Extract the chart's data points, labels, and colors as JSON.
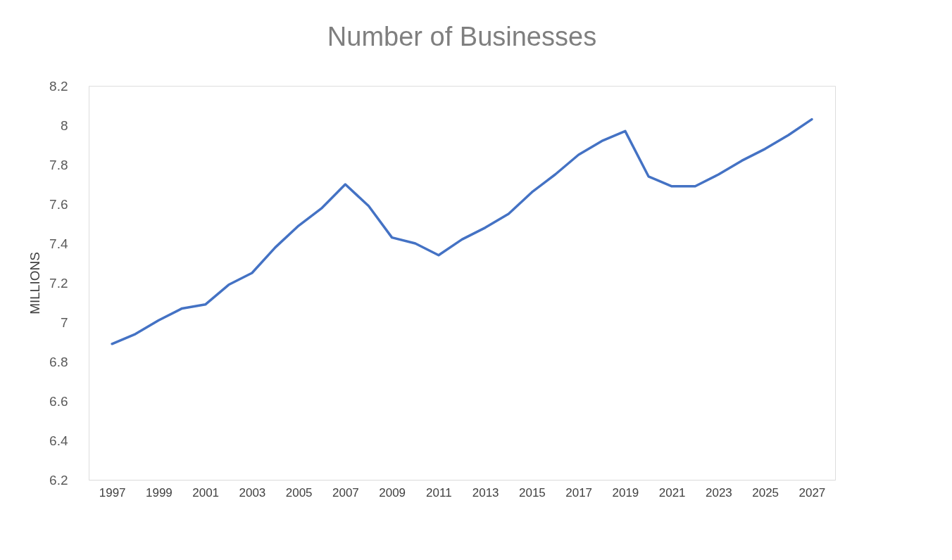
{
  "chart_data": {
    "type": "line",
    "title": "Number of Businesses",
    "ylabel": "MILLIONS",
    "x": [
      1997,
      1998,
      1999,
      2000,
      2001,
      2002,
      2003,
      2004,
      2005,
      2006,
      2007,
      2008,
      2009,
      2010,
      2011,
      2012,
      2013,
      2014,
      2015,
      2016,
      2017,
      2018,
      2019,
      2020,
      2021,
      2022,
      2023,
      2024,
      2025,
      2026,
      2027
    ],
    "series": [
      {
        "color": "#4472c4",
        "values": [
          6.89,
          6.94,
          7.01,
          7.07,
          7.09,
          7.19,
          7.25,
          7.38,
          7.49,
          7.58,
          7.7,
          7.59,
          7.43,
          7.4,
          7.34,
          7.42,
          7.48,
          7.55,
          7.66,
          7.75,
          7.85,
          7.92,
          7.97,
          7.74,
          7.69,
          7.69,
          7.75,
          7.82,
          7.88,
          7.95,
          8.03
        ]
      }
    ],
    "xlim": [
      1996,
      2028
    ],
    "xticks": [
      1997,
      1999,
      2001,
      2003,
      2005,
      2007,
      2009,
      2011,
      2013,
      2015,
      2017,
      2019,
      2021,
      2023,
      2025,
      2027
    ],
    "ylim": [
      6.2,
      8.2
    ],
    "yticks": [
      6.2,
      6.4,
      6.6,
      6.8,
      7,
      7.2,
      7.4,
      7.6,
      7.8,
      8,
      8.2
    ],
    "grid": false,
    "marker": "none",
    "line_style": "solid"
  }
}
